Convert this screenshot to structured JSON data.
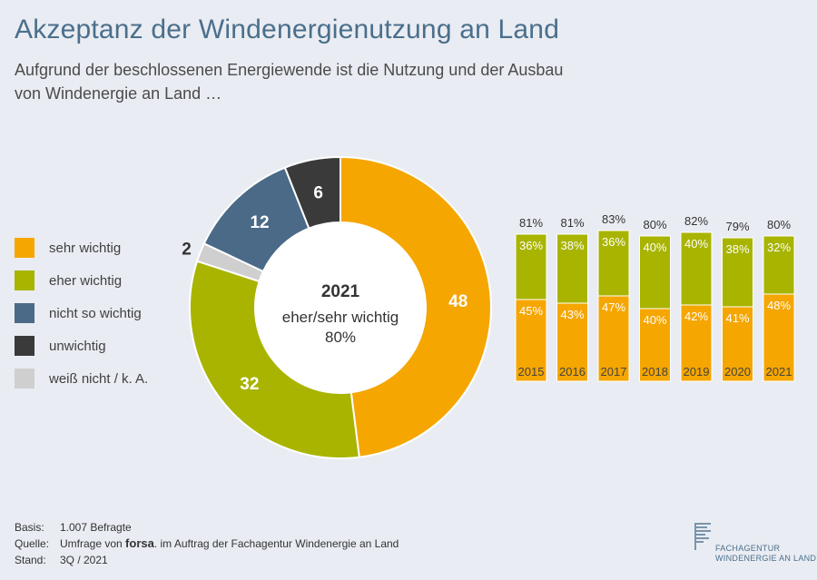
{
  "title": "Akzeptanz der Windenergienutzung an Land",
  "subtitle": "Aufgrund der beschlossenen Energiewende ist die Nutzung und der Ausbau von Windenergie an Land …",
  "legend": [
    {
      "label": "sehr wichtig",
      "color": "#f5a600"
    },
    {
      "label": "eher wichtig",
      "color": "#a8b400"
    },
    {
      "label": "nicht so wichtig",
      "color": "#4a6a88"
    },
    {
      "label": "unwichtig",
      "color": "#3a3a3a"
    },
    {
      "label": "weiß nicht / k. A.",
      "color": "#cfcfcf"
    }
  ],
  "chart_data": [
    {
      "type": "pie",
      "variant": "donut",
      "center_year": "2021",
      "center_label": "eher/sehr wichtig",
      "center_value": "80%",
      "categories": [
        "sehr wichtig",
        "eher wichtig",
        "weiß nicht / k. A.",
        "nicht so wichtig",
        "unwichtig"
      ],
      "values": [
        48,
        32,
        2,
        12,
        6
      ],
      "colors": [
        "#f5a600",
        "#a8b400",
        "#cfcfcf",
        "#4a6a88",
        "#3a3a3a"
      ]
    },
    {
      "type": "bar",
      "stacked": true,
      "categories": [
        "2015",
        "2016",
        "2017",
        "2018",
        "2019",
        "2020",
        "2021"
      ],
      "totals": [
        "81%",
        "81%",
        "83%",
        "80%",
        "82%",
        "79%",
        "80%"
      ],
      "series": [
        {
          "name": "sehr wichtig",
          "color": "#f5a600",
          "values": [
            45,
            43,
            47,
            40,
            42,
            41,
            48
          ]
        },
        {
          "name": "eher wichtig",
          "color": "#a8b400",
          "values": [
            36,
            38,
            36,
            40,
            40,
            38,
            32
          ]
        }
      ],
      "ylim": [
        0,
        100
      ]
    }
  ],
  "footer": {
    "basis_key": "Basis:",
    "basis_val": "1.007 Befragte",
    "source_key": "Quelle:",
    "source_pre": "Umfrage von",
    "source_brand": "forsa",
    "source_post": ". im Auftrag der Fachagentur Windenergie an Land",
    "stand_key": "Stand:",
    "stand_val": "3Q / 2021"
  },
  "logo": {
    "line1": "FACHAGENTUR",
    "line2": "WINDENERGIE AN LAND"
  }
}
